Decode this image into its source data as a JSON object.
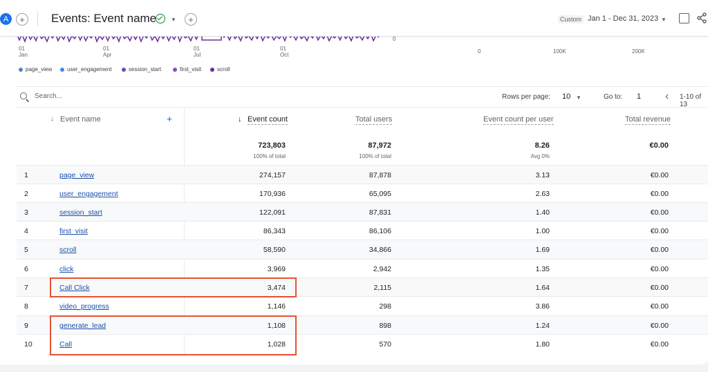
{
  "header": {
    "avatar_letter": "A",
    "add_label": "+",
    "title": "Events: Event name",
    "date_chip": "Custom",
    "date_range": "Jan 1 - Dec 31, 2023"
  },
  "chart": {
    "x_ticks": [
      {
        "day": "01",
        "month": "Jan"
      },
      {
        "day": "01",
        "month": "Apr"
      },
      {
        "day": "01",
        "month": "Jul"
      },
      {
        "day": "01",
        "month": "Oct"
      }
    ],
    "y_zero": "0",
    "bar_ticks": [
      "0",
      "100K",
      "200K"
    ],
    "legend": [
      {
        "label": "page_view",
        "color": "#4f86c6"
      },
      {
        "label": "user_engagement",
        "color": "#4285f4"
      },
      {
        "label": "session_start",
        "color": "#5a54c4"
      },
      {
        "label": "first_visit",
        "color": "#8e49c9"
      },
      {
        "label": "scroll",
        "color": "#6a2ba0"
      }
    ]
  },
  "toolbar": {
    "search_placeholder": "Search...",
    "rows_per_page_label": "Rows per page:",
    "rows_per_page_value": "10",
    "goto_label": "Go to:",
    "goto_value": "1",
    "range_label": "1-10 of 13"
  },
  "table": {
    "headers": {
      "event_name": "Event name",
      "event_count": "Event count",
      "total_users": "Total users",
      "per_user": "Event count per user",
      "revenue": "Total revenue"
    },
    "totals": {
      "event_count": "723,803",
      "event_count_sub": "100% of total",
      "total_users": "87,972",
      "total_users_sub": "100% of total",
      "per_user": "8.26",
      "per_user_sub": "Avg 0%",
      "revenue": "€0.00"
    },
    "rows": [
      {
        "idx": "1",
        "name": "page_view",
        "count": "274,157",
        "users": "87,878",
        "per_user": "3.13",
        "revenue": "€0.00"
      },
      {
        "idx": "2",
        "name": "user_engagement",
        "count": "170,936",
        "users": "65,095",
        "per_user": "2.63",
        "revenue": "€0.00"
      },
      {
        "idx": "3",
        "name": "session_start",
        "count": "122,091",
        "users": "87,831",
        "per_user": "1.40",
        "revenue": "€0.00"
      },
      {
        "idx": "4",
        "name": "first_visit",
        "count": "86,343",
        "users": "86,106",
        "per_user": "1.00",
        "revenue": "€0.00"
      },
      {
        "idx": "5",
        "name": "scroll",
        "count": "58,590",
        "users": "34,866",
        "per_user": "1.69",
        "revenue": "€0.00"
      },
      {
        "idx": "6",
        "name": "click",
        "count": "3,969",
        "users": "2,942",
        "per_user": "1.35",
        "revenue": "€0.00"
      },
      {
        "idx": "7",
        "name": "Call Click",
        "count": "3,474",
        "users": "2,115",
        "per_user": "1.64",
        "revenue": "€0.00"
      },
      {
        "idx": "8",
        "name": "video_progress",
        "count": "1,146",
        "users": "298",
        "per_user": "3.86",
        "revenue": "€0.00"
      },
      {
        "idx": "9",
        "name": "generate_lead",
        "count": "1,108",
        "users": "898",
        "per_user": "1.24",
        "revenue": "€0.00"
      },
      {
        "idx": "10",
        "name": "Call",
        "count": "1,028",
        "users": "570",
        "per_user": "1.80",
        "revenue": "€0.00"
      }
    ]
  },
  "colors": {
    "accent": "#1a73e8",
    "link": "#1a4fa8",
    "highlight": "#e8502f",
    "line_series": "#6a2ba0"
  }
}
